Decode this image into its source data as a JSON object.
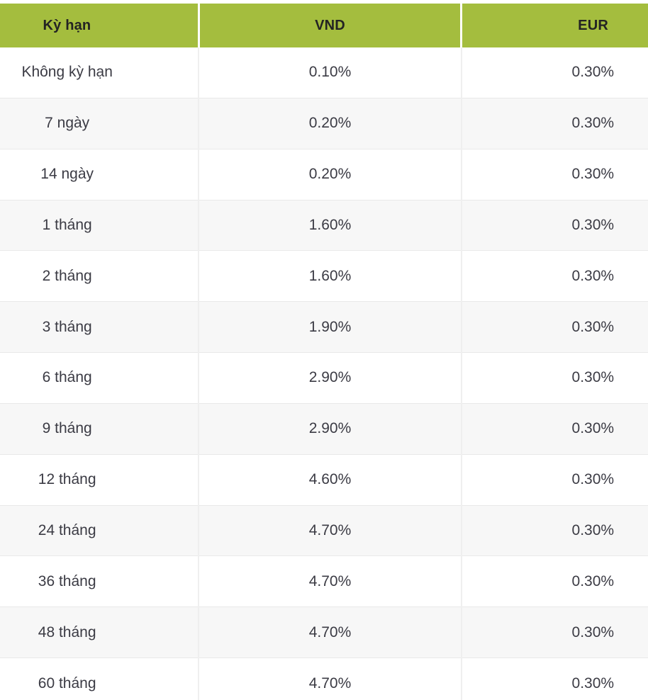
{
  "colors": {
    "accent_green": "#a4bd3e",
    "header_text": "#232323",
    "body_text": "#3b3b44",
    "row_background": "#ffffff",
    "row_alt_background": "#f7f7f7",
    "divider": "#e9e9e9",
    "page_background": "#ffffff"
  },
  "table": {
    "columns": [
      {
        "id": "term",
        "label": "Kỳ hạn"
      },
      {
        "id": "vnd",
        "label": "VND"
      },
      {
        "id": "eur",
        "label": "EUR"
      }
    ],
    "rows": [
      {
        "term": "Không kỳ hạn",
        "vnd": "0.10%",
        "eur": "0.30%"
      },
      {
        "term": "7 ngày",
        "vnd": "0.20%",
        "eur": "0.30%"
      },
      {
        "term": "14 ngày",
        "vnd": "0.20%",
        "eur": "0.30%"
      },
      {
        "term": "1 tháng",
        "vnd": "1.60%",
        "eur": "0.30%"
      },
      {
        "term": "2 tháng",
        "vnd": "1.60%",
        "eur": "0.30%"
      },
      {
        "term": "3 tháng",
        "vnd": "1.90%",
        "eur": "0.30%"
      },
      {
        "term": "6 tháng",
        "vnd": "2.90%",
        "eur": "0.30%"
      },
      {
        "term": "9 tháng",
        "vnd": "2.90%",
        "eur": "0.30%"
      },
      {
        "term": "12 tháng",
        "vnd": "4.60%",
        "eur": "0.30%"
      },
      {
        "term": "24 tháng",
        "vnd": "4.70%",
        "eur": "0.30%"
      },
      {
        "term": "36 tháng",
        "vnd": "4.70%",
        "eur": "0.30%"
      },
      {
        "term": "48 tháng",
        "vnd": "4.70%",
        "eur": "0.30%"
      },
      {
        "term": "60 tháng",
        "vnd": "4.70%",
        "eur": "0.30%"
      }
    ]
  }
}
